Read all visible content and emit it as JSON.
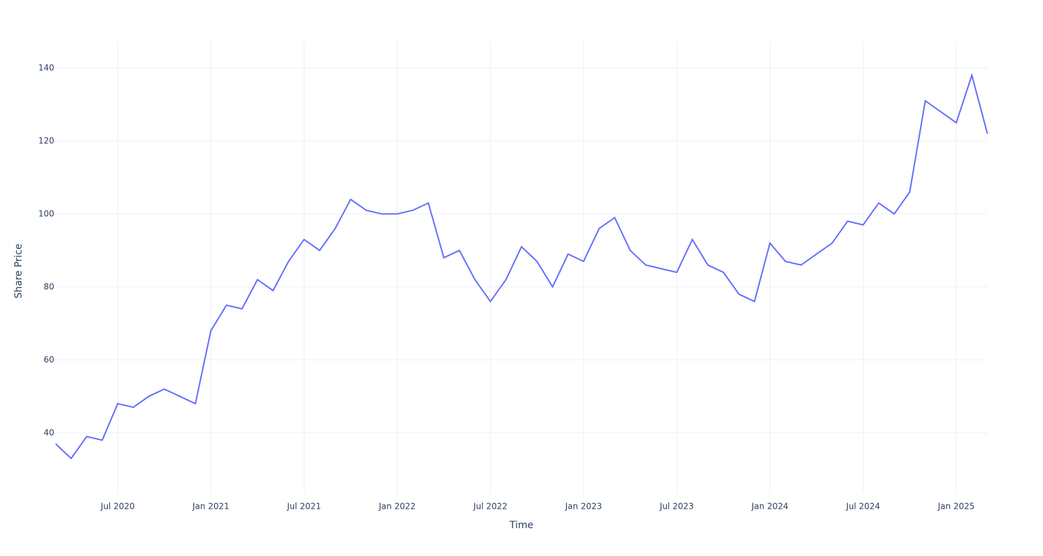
{
  "chart_data": {
    "type": "line",
    "x_label": "Time",
    "y_label": "Share Price",
    "x": [
      "2020-03",
      "2020-04",
      "2020-05",
      "2020-06",
      "2020-07",
      "2020-08",
      "2020-09",
      "2020-10",
      "2020-11",
      "2020-12",
      "2021-01",
      "2021-02",
      "2021-03",
      "2021-04",
      "2021-05",
      "2021-06",
      "2021-07",
      "2021-08",
      "2021-09",
      "2021-10",
      "2021-11",
      "2021-12",
      "2022-01",
      "2022-02",
      "2022-03",
      "2022-04",
      "2022-05",
      "2022-06",
      "2022-07",
      "2022-08",
      "2022-09",
      "2022-10",
      "2022-11",
      "2022-12",
      "2023-01",
      "2023-02",
      "2023-03",
      "2023-04",
      "2023-05",
      "2023-06",
      "2023-07",
      "2023-08",
      "2023-09",
      "2023-10",
      "2023-11",
      "2023-12",
      "2024-01",
      "2024-02",
      "2024-03",
      "2024-04",
      "2024-05",
      "2024-06",
      "2024-07",
      "2024-08",
      "2024-09",
      "2024-10",
      "2024-11",
      "2024-12",
      "2025-01",
      "2025-02",
      "2025-03"
    ],
    "series": [
      {
        "color": "#636efa",
        "values": [
          37,
          33,
          39,
          38,
          48,
          47,
          50,
          52,
          50,
          48,
          68,
          75,
          74,
          82,
          79,
          87,
          93,
          90,
          96,
          104,
          101,
          100,
          100,
          101,
          103,
          88,
          90,
          82,
          76,
          82,
          91,
          87,
          80,
          89,
          87,
          96,
          99,
          90,
          86,
          85,
          84,
          93,
          86,
          84,
          78,
          76,
          92,
          87,
          86,
          89,
          92,
          98,
          97,
          103,
          100,
          106,
          131,
          128,
          125,
          138,
          122
        ]
      }
    ],
    "xlim": [
      "2020-03",
      "2025-03"
    ],
    "xticks": [
      {
        "value": "2020-07",
        "label": "Jul 2020"
      },
      {
        "value": "2021-01",
        "label": "Jan 2021"
      },
      {
        "value": "2021-07",
        "label": "Jul 2021"
      },
      {
        "value": "2022-01",
        "label": "Jan 2022"
      },
      {
        "value": "2022-07",
        "label": "Jul 2022"
      },
      {
        "value": "2023-01",
        "label": "Jan 2023"
      },
      {
        "value": "2023-07",
        "label": "Jul 2023"
      },
      {
        "value": "2024-01",
        "label": "Jan 2024"
      },
      {
        "value": "2024-07",
        "label": "Jul 2024"
      },
      {
        "value": "2025-01",
        "label": "Jan 2025"
      }
    ],
    "ylim": [
      23.4,
      147.2
    ],
    "yticks": [
      40,
      60,
      80,
      100,
      120,
      140
    ],
    "grid": true
  }
}
